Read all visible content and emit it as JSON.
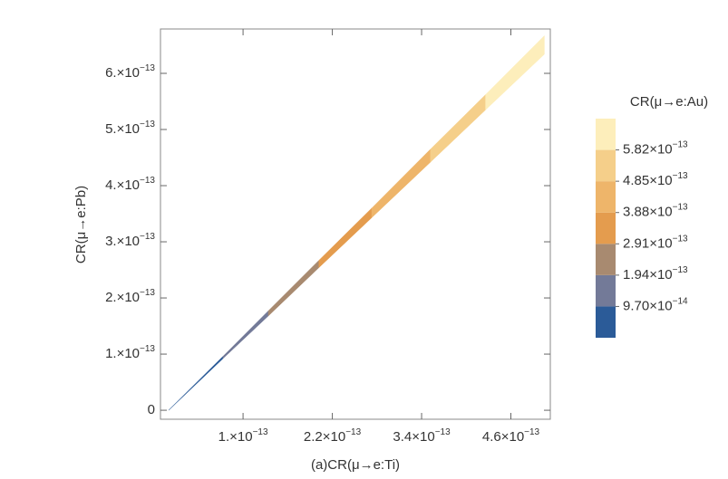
{
  "chart_data": {
    "type": "contour",
    "x_label": "(a)CR(μ→e:Ti)",
    "y_label": "CR(μ→e:Pb)",
    "x": [
      0,
      7.3e-14,
      1.34e-13,
      2.02e-13,
      2.73e-13,
      3.52e-13,
      4.26e-13,
      5.05e-13
    ],
    "y_low": [
      0,
      9.2e-14,
      1.68e-13,
      2.54e-13,
      3.43e-13,
      4.42e-13,
      5.35e-13,
      6.34e-13
    ],
    "y_high": [
      0,
      9.6e-14,
      1.77e-13,
      2.67e-13,
      3.6e-13,
      4.65e-13,
      5.62e-13,
      6.67e-13
    ],
    "xlim": [
      -1.1e-14,
      5.13e-13
    ],
    "ylim": [
      -1.6e-14,
      6.79e-13
    ],
    "xticks": [
      {
        "value": 1e-13,
        "label": "1.×10",
        "exponent": "−13"
      },
      {
        "value": 2.2e-13,
        "label": "2.2×10",
        "exponent": "−13"
      },
      {
        "value": 3.4e-13,
        "label": "3.4×10",
        "exponent": "−13"
      },
      {
        "value": 4.6e-13,
        "label": "4.6×10",
        "exponent": "−13"
      }
    ],
    "yticks": [
      0,
      {
        "value": 1e-13,
        "label": "1.×10",
        "exponent": "−13"
      },
      {
        "value": 2e-13,
        "label": "2.×10",
        "exponent": "−13"
      },
      {
        "value": 3e-13,
        "label": "3.×10",
        "exponent": "−13"
      },
      {
        "value": 4e-13,
        "label": "4.×10",
        "exponent": "−13"
      },
      {
        "value": 5e-13,
        "label": "5.×10",
        "exponent": "−13"
      },
      {
        "value": 6e-13,
        "label": "6.×10",
        "exponent": "−13"
      }
    ],
    "colorbar": {
      "title": "CR(μ→e:Au)",
      "lim": [
        0,
        6.79e-13
      ],
      "colors": [
        "#2b5b98",
        "#737a98",
        "#a88a70",
        "#e49c4e",
        "#eeb56a",
        "#f5cf8a",
        "#fdeebb"
      ],
      "ticks": [
        {
          "value": 9.7e-14,
          "label": "9.70×10",
          "exponent": "−14"
        },
        {
          "value": 1.94e-13,
          "label": "1.94×10",
          "exponent": "−13"
        },
        {
          "value": 2.91e-13,
          "label": "2.91×10",
          "exponent": "−13"
        },
        {
          "value": 3.88e-13,
          "label": "3.88×10",
          "exponent": "−13"
        },
        {
          "value": 4.85e-13,
          "label": "4.85×10",
          "exponent": "−13"
        },
        {
          "value": 5.82e-13,
          "label": "5.82×10",
          "exponent": "−13"
        }
      ]
    }
  }
}
